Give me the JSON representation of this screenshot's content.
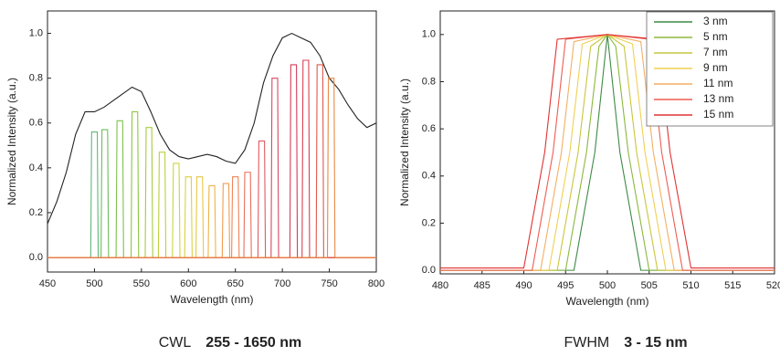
{
  "chart_data": [
    {
      "type": "line",
      "xlabel": "Wavelength (nm)",
      "ylabel": "Normalized Intensity (a.u.)",
      "xlim": [
        450,
        800
      ],
      "xticks": [
        450,
        500,
        550,
        600,
        650,
        700,
        750,
        800
      ],
      "ylim": [
        -0.065,
        1.1
      ],
      "yticks": [
        {
          "value": 0,
          "label": "0.0"
        },
        {
          "value": 0.2,
          "label": "0.2"
        },
        {
          "value": 0.4,
          "label": "0.4"
        },
        {
          "value": 0.6,
          "label": "0.6"
        },
        {
          "value": 0.8,
          "label": "0.8"
        },
        {
          "value": 1.0,
          "label": "1.0"
        }
      ],
      "caption_label": "CWL",
      "caption_value": "255 - 1650 nm",
      "series": [
        {
          "color": "#222222",
          "x": [
            450,
            460,
            470,
            480,
            490,
            500,
            510,
            520,
            530,
            540,
            550,
            560,
            570,
            580,
            590,
            600,
            610,
            620,
            630,
            640,
            650,
            660,
            670,
            680,
            690,
            700,
            710,
            720,
            730,
            740,
            750,
            760,
            770,
            780,
            790,
            800
          ],
          "values": [
            0.15,
            0.25,
            0.38,
            0.55,
            0.65,
            0.65,
            0.67,
            0.7,
            0.73,
            0.76,
            0.74,
            0.65,
            0.55,
            0.48,
            0.45,
            0.44,
            0.45,
            0.46,
            0.45,
            0.43,
            0.42,
            0.48,
            0.6,
            0.78,
            0.9,
            0.98,
            1.0,
            0.98,
            0.96,
            0.9,
            0.8,
            0.75,
            0.68,
            0.62,
            0.58,
            0.6
          ]
        },
        {
          "color": "#5fb878",
          "x": [
            450,
            496,
            497,
            503,
            504,
            800
          ],
          "values": [
            0,
            0,
            0.56,
            0.56,
            0,
            0
          ]
        },
        {
          "color": "#6dbd5a",
          "x": [
            450,
            507,
            508,
            514,
            515,
            800
          ],
          "values": [
            0,
            0,
            0.57,
            0.57,
            0,
            0
          ]
        },
        {
          "color": "#7cc24a",
          "x": [
            450,
            523,
            524,
            530,
            531,
            800
          ],
          "values": [
            0,
            0,
            0.61,
            0.61,
            0,
            0
          ]
        },
        {
          "color": "#8cc640",
          "x": [
            450,
            539,
            540,
            546,
            547,
            800
          ],
          "values": [
            0,
            0,
            0.65,
            0.65,
            0,
            0
          ]
        },
        {
          "color": "#a6cc3c",
          "x": [
            450,
            554,
            555,
            561,
            562,
            800
          ],
          "values": [
            0,
            0,
            0.58,
            0.58,
            0,
            0
          ]
        },
        {
          "color": "#bcd03c",
          "x": [
            450,
            568,
            569,
            575,
            576,
            800
          ],
          "values": [
            0,
            0,
            0.47,
            0.47,
            0,
            0
          ]
        },
        {
          "color": "#cfd33e",
          "x": [
            450,
            583,
            584,
            590,
            591,
            800
          ],
          "values": [
            0,
            0,
            0.42,
            0.42,
            0,
            0
          ]
        },
        {
          "color": "#ddd040",
          "x": [
            450,
            596,
            597,
            603,
            604,
            800
          ],
          "values": [
            0,
            0,
            0.36,
            0.36,
            0,
            0
          ]
        },
        {
          "color": "#e8c844",
          "x": [
            450,
            608,
            609,
            615,
            616,
            800
          ],
          "values": [
            0,
            0,
            0.36,
            0.36,
            0,
            0
          ]
        },
        {
          "color": "#eeb448",
          "x": [
            450,
            621,
            622,
            628,
            629,
            800
          ],
          "values": [
            0,
            0,
            0.32,
            0.32,
            0,
            0
          ]
        },
        {
          "color": "#f09c50",
          "x": [
            450,
            636,
            637,
            643,
            644,
            800
          ],
          "values": [
            0,
            0,
            0.33,
            0.33,
            0,
            0
          ]
        },
        {
          "color": "#ee8456",
          "x": [
            450,
            646,
            647,
            653,
            654,
            800
          ],
          "values": [
            0,
            0,
            0.36,
            0.36,
            0,
            0
          ]
        },
        {
          "color": "#ea6e5a",
          "x": [
            450,
            659,
            660,
            666,
            667,
            800
          ],
          "values": [
            0,
            0,
            0.38,
            0.38,
            0,
            0
          ]
        },
        {
          "color": "#e05a60",
          "x": [
            450,
            674,
            675,
            681,
            682,
            800
          ],
          "values": [
            0,
            0,
            0.52,
            0.52,
            0,
            0
          ]
        },
        {
          "color": "#d84860",
          "x": [
            450,
            688,
            689,
            695,
            696,
            800
          ],
          "values": [
            0,
            0,
            0.8,
            0.8,
            0,
            0
          ]
        },
        {
          "color": "#d63c58",
          "x": [
            450,
            708,
            709,
            715,
            716,
            800
          ],
          "values": [
            0,
            0,
            0.86,
            0.86,
            0,
            0
          ]
        },
        {
          "color": "#d84050",
          "x": [
            450,
            721,
            722,
            728,
            729,
            800
          ],
          "values": [
            0,
            0,
            0.88,
            0.88,
            0,
            0
          ]
        },
        {
          "color": "#e0584a",
          "x": [
            450,
            736,
            737,
            743,
            744,
            800
          ],
          "values": [
            0,
            0,
            0.86,
            0.86,
            0,
            0
          ]
        },
        {
          "color": "#e88a44",
          "x": [
            450,
            748,
            749,
            755,
            756,
            800
          ],
          "values": [
            0,
            0,
            0.8,
            0.8,
            0,
            0
          ]
        }
      ]
    },
    {
      "type": "line",
      "xlabel": "Wavelength (nm)",
      "ylabel": "Normalized Intensity (a.u.)",
      "xlim": [
        480,
        520
      ],
      "xticks": [
        480,
        485,
        490,
        495,
        500,
        505,
        510,
        515,
        520
      ],
      "ylim": [
        -0.015,
        1.1
      ],
      "yticks": [
        {
          "value": 0,
          "label": "0.0"
        },
        {
          "value": 0.2,
          "label": "0.2"
        },
        {
          "value": 0.4,
          "label": "0.4"
        },
        {
          "value": 0.6,
          "label": "0.6"
        },
        {
          "value": 0.8,
          "label": "0.8"
        },
        {
          "value": 1.0,
          "label": "1.0"
        }
      ],
      "legend": "upper right",
      "caption_label": "FWHM",
      "caption_value": "3 - 15 nm",
      "series": [
        {
          "name": "3 nm",
          "color": "#3d8a45",
          "x": [
            480,
            496,
            498.5,
            500,
            501.5,
            504,
            520
          ],
          "values": [
            0,
            0,
            0.5,
            1.0,
            0.5,
            0,
            0
          ]
        },
        {
          "name": "5 nm",
          "color": "#8bb83c",
          "x": [
            480,
            495,
            497.5,
            499,
            500,
            501,
            502.5,
            505,
            520
          ],
          "values": [
            0,
            0,
            0.5,
            0.95,
            1.0,
            0.95,
            0.5,
            0,
            0
          ]
        },
        {
          "name": "7 nm",
          "color": "#c9c63c",
          "x": [
            480,
            494,
            496.5,
            498,
            500,
            502,
            503.5,
            506,
            520
          ],
          "values": [
            0,
            0,
            0.5,
            0.95,
            1.0,
            0.95,
            0.5,
            0,
            0
          ]
        },
        {
          "name": "9 nm",
          "color": "#f0d052",
          "x": [
            480,
            493,
            495.5,
            497,
            500,
            503,
            504.5,
            507,
            520
          ],
          "values": [
            0,
            0,
            0.5,
            0.96,
            1.0,
            0.96,
            0.5,
            0,
            0
          ]
        },
        {
          "name": "11 nm",
          "color": "#f4ae62",
          "x": [
            480,
            492,
            494.5,
            496,
            500,
            504,
            505.5,
            508,
            520
          ],
          "values": [
            0,
            0,
            0.5,
            0.97,
            1.0,
            0.97,
            0.5,
            0,
            0
          ]
        },
        {
          "name": "13 nm",
          "color": "#ee5c52",
          "x": [
            480,
            491,
            493.5,
            495,
            500,
            505,
            506.5,
            509,
            520
          ],
          "values": [
            0,
            0,
            0.5,
            0.98,
            1.0,
            0.98,
            0.5,
            0,
            0
          ]
        },
        {
          "name": "15 nm",
          "color": "#e03232",
          "x": [
            480,
            490,
            492.5,
            494,
            500,
            506,
            507.5,
            510,
            520
          ],
          "values": [
            0.01,
            0.01,
            0.5,
            0.98,
            1.0,
            0.98,
            0.5,
            0.01,
            0.01
          ]
        }
      ]
    }
  ]
}
